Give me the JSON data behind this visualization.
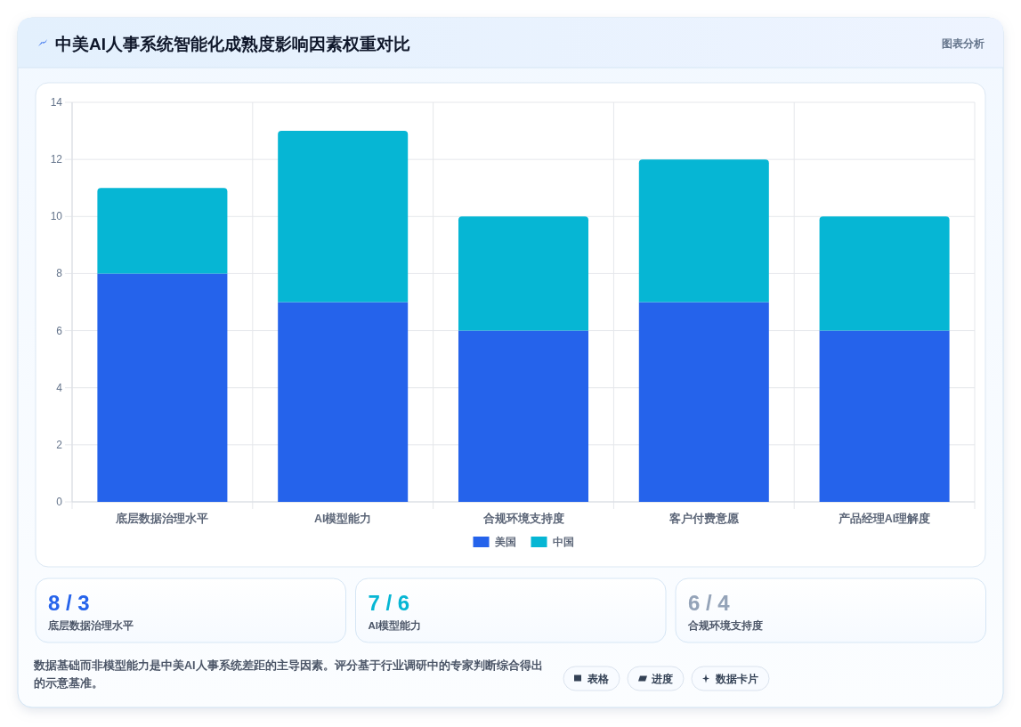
{
  "chart_data": [
    {
      "type": "bar",
      "title": "中美AI人事系统智能化成熟度影响因素权重对比",
      "annotations": [
        "图表分析"
      ],
      "categories": [
        "底层数据治理水平",
        "AI模型能力",
        "合规环境支持度",
        "客户付费意愿",
        "产品经理AI理解度"
      ],
      "series": [
        {
          "name": "美国",
          "color": "#2563eb",
          "values": [
            8,
            7,
            6,
            7,
            6
          ]
        },
        {
          "name": "中国",
          "color": "#06b6d4",
          "values": [
            3,
            6,
            4,
            5,
            4
          ]
        }
      ],
      "stacked": true,
      "ylim": [
        0,
        14
      ],
      "yticks": [
        0,
        2,
        4,
        6,
        8,
        10,
        12,
        14
      ],
      "grid": true,
      "legend": "bottom"
    },
    {
      "type": "other",
      "title": "8 / 3",
      "subtitle": "底层数据治理水平"
    },
    {
      "type": "other",
      "title": "7 / 6",
      "subtitle": "AI模型能力"
    },
    {
      "type": "other",
      "title": "6 / 4",
      "subtitle": "合规环境支持度"
    },
    {
      "type": "other",
      "annotations": [
        "数据基础而非模型能力是中美AI人事系统差距的主导因素。评分基于行业调研中的专家判断综合得出的示意基准。",
        "表格",
        "进度",
        "数据卡片"
      ]
    }
  ]
}
